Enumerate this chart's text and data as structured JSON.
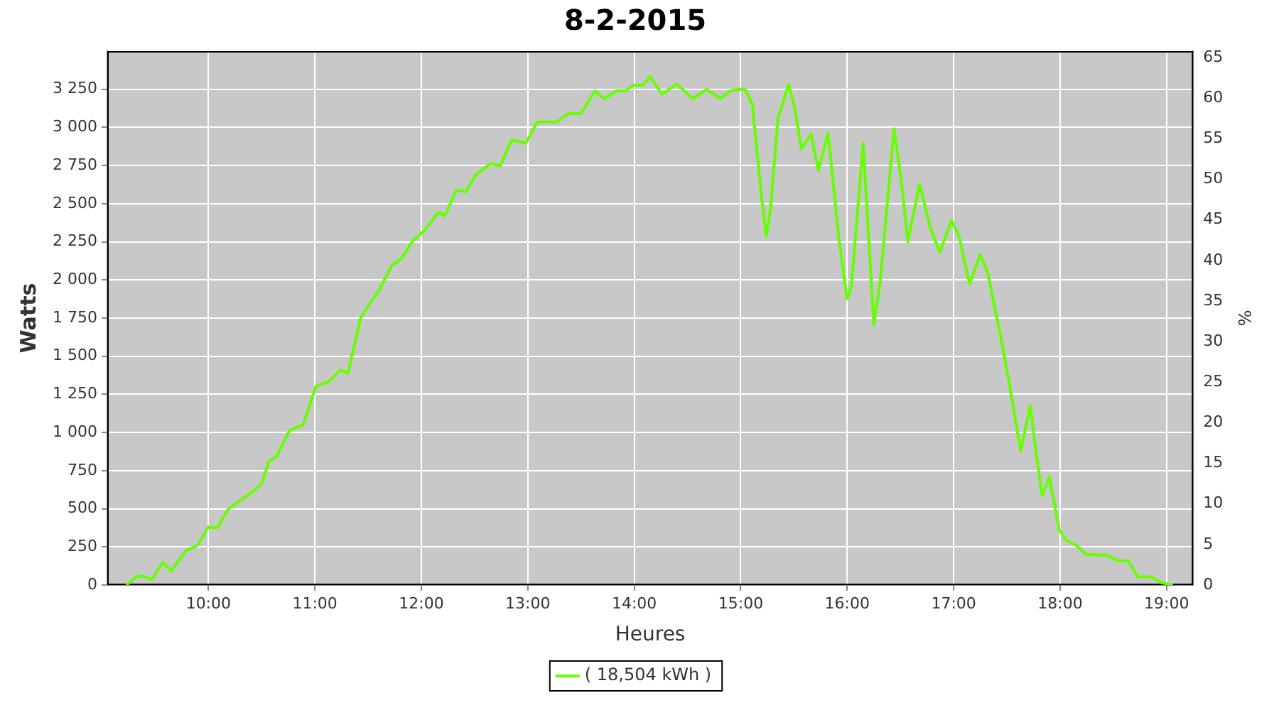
{
  "chart_data": {
    "type": "line",
    "title": "8-2-2015",
    "xlabel": "Heures",
    "ylabel": "Watts",
    "y2label": "%",
    "xlim": [
      9.05,
      19.25
    ],
    "xticks": [
      {
        "value": 10,
        "label": "10:00"
      },
      {
        "value": 11,
        "label": "11:00"
      },
      {
        "value": 12,
        "label": "12:00"
      },
      {
        "value": 13,
        "label": "13:00"
      },
      {
        "value": 14,
        "label": "14:00"
      },
      {
        "value": 15,
        "label": "15:00"
      },
      {
        "value": 16,
        "label": "16:00"
      },
      {
        "value": 17,
        "label": "17:00"
      },
      {
        "value": 18,
        "label": "18:00"
      },
      {
        "value": 19,
        "label": "19:00"
      }
    ],
    "ylim": [
      0,
      3500
    ],
    "yticks": [
      0,
      250,
      500,
      750,
      {
        "value": 1000,
        "label": "1 000"
      },
      {
        "value": 1250,
        "label": "1 250"
      },
      {
        "value": 1500,
        "label": "1 500"
      },
      {
        "value": 1750,
        "label": "1 750"
      },
      {
        "value": 2000,
        "label": "2 000"
      },
      {
        "value": 2250,
        "label": "2 250"
      },
      {
        "value": 2500,
        "label": "2 500"
      },
      {
        "value": 2750,
        "label": "2 750"
      },
      {
        "value": 3000,
        "label": "3 000"
      },
      {
        "value": 3250,
        "label": "3 250"
      }
    ],
    "y2lim": [
      0,
      65.8
    ],
    "y2ticks": [
      0,
      5,
      10,
      15,
      20,
      25,
      30,
      35,
      40,
      45,
      50,
      55,
      60,
      65
    ],
    "grid": true,
    "legend": "bottom",
    "marker": "none",
    "line_style": "solid",
    "series": [
      {
        "name": "( 18,504 kWh )",
        "color": "#66ff00",
        "x": [
          9.23,
          9.32,
          9.38,
          9.47,
          9.57,
          9.65,
          9.79,
          9.9,
          10.0,
          10.08,
          10.19,
          10.4,
          10.5,
          10.57,
          10.64,
          10.76,
          10.89,
          11.01,
          11.13,
          11.24,
          11.31,
          11.43,
          11.51,
          11.6,
          11.72,
          11.82,
          11.92,
          12.02,
          12.16,
          12.22,
          12.33,
          12.42,
          12.51,
          12.65,
          12.74,
          12.85,
          12.98,
          13.09,
          13.27,
          13.38,
          13.5,
          13.63,
          13.72,
          13.83,
          13.92,
          13.99,
          14.08,
          14.15,
          14.26,
          14.4,
          14.55,
          14.68,
          14.81,
          14.9,
          15.04,
          15.11,
          15.19,
          15.24,
          15.28,
          15.35,
          15.45,
          15.51,
          15.57,
          15.66,
          15.73,
          15.82,
          15.92,
          16.0,
          16.04,
          16.15,
          16.25,
          16.31,
          16.44,
          16.51,
          16.57,
          16.68,
          16.78,
          16.87,
          16.98,
          17.05,
          17.15,
          17.25,
          17.32,
          17.38,
          17.45,
          17.52,
          17.63,
          17.72,
          17.76,
          17.83,
          17.9,
          17.99,
          18.06,
          18.15,
          18.24,
          18.44,
          18.55,
          18.64,
          18.73,
          18.86,
          18.95,
          19.06
        ],
        "values": [
          0,
          54,
          60,
          36,
          149,
          92,
          226,
          262,
          381,
          375,
          500,
          604,
          664,
          813,
          842,
          1012,
          1051,
          1304,
          1333,
          1411,
          1387,
          1750,
          1839,
          1929,
          2092,
          2146,
          2257,
          2316,
          2444,
          2420,
          2590,
          2578,
          2688,
          2762,
          2748,
          2917,
          2896,
          3036,
          3036,
          3090,
          3090,
          3239,
          3188,
          3239,
          3239,
          3277,
          3277,
          3334,
          3218,
          3283,
          3188,
          3248,
          3188,
          3239,
          3253,
          3149,
          2583,
          2286,
          2465,
          3060,
          3283,
          3119,
          2858,
          2956,
          2717,
          2965,
          2286,
          1875,
          1958,
          2896,
          1706,
          1989,
          2991,
          2643,
          2250,
          2628,
          2346,
          2182,
          2390,
          2286,
          1973,
          2167,
          2048,
          1840,
          1601,
          1333,
          878,
          1176,
          947,
          589,
          708,
          366,
          292,
          262,
          203,
          194,
          158,
          158,
          54,
          54,
          15,
          0
        ]
      }
    ]
  }
}
